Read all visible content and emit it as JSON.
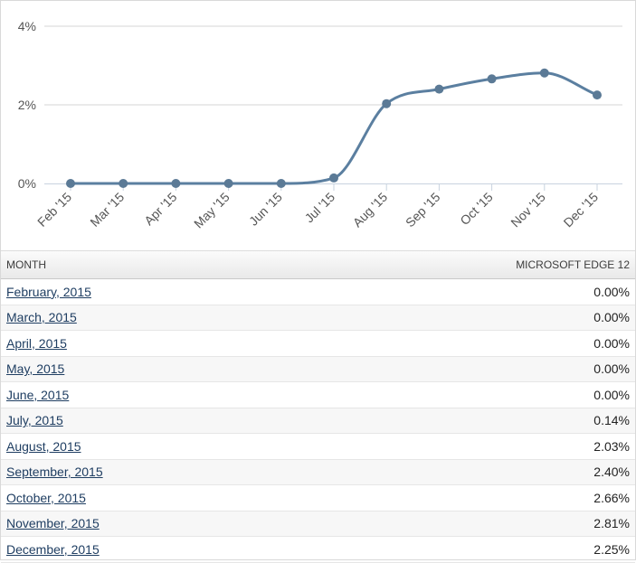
{
  "chart_data": {
    "type": "line",
    "categories": [
      "Feb '15",
      "Mar '15",
      "Apr '15",
      "May '15",
      "Jun '15",
      "Jul '15",
      "Aug '15",
      "Sep '15",
      "Oct '15",
      "Nov '15",
      "Dec '15"
    ],
    "series": [
      {
        "name": "MICROSOFT EDGE 12",
        "values": [
          0.0,
          0.0,
          0.0,
          0.0,
          0.0,
          0.14,
          2.03,
          2.4,
          2.66,
          2.81,
          2.25
        ]
      }
    ],
    "yticks": [
      "0%",
      "2%",
      "4%"
    ],
    "ylim": [
      0,
      4
    ],
    "grid": true,
    "colors": {
      "line": "#5b7fa0",
      "marker": "#5b7a96",
      "grid": "#d6d6d6",
      "axis": "#c8d3df"
    }
  },
  "table": {
    "headers": {
      "month": "MONTH",
      "value": "MICROSOFT EDGE 12"
    },
    "rows": [
      {
        "month": "February, 2015",
        "value": "0.00%"
      },
      {
        "month": "March, 2015",
        "value": "0.00%"
      },
      {
        "month": "April, 2015",
        "value": "0.00%"
      },
      {
        "month": "May, 2015",
        "value": "0.00%"
      },
      {
        "month": "June, 2015",
        "value": "0.00%"
      },
      {
        "month": "July, 2015",
        "value": "0.14%"
      },
      {
        "month": "August, 2015",
        "value": "2.03%"
      },
      {
        "month": "September, 2015",
        "value": "2.40%"
      },
      {
        "month": "October, 2015",
        "value": "2.66%"
      },
      {
        "month": "November, 2015",
        "value": "2.81%"
      },
      {
        "month": "December, 2015",
        "value": "2.25%"
      }
    ]
  }
}
